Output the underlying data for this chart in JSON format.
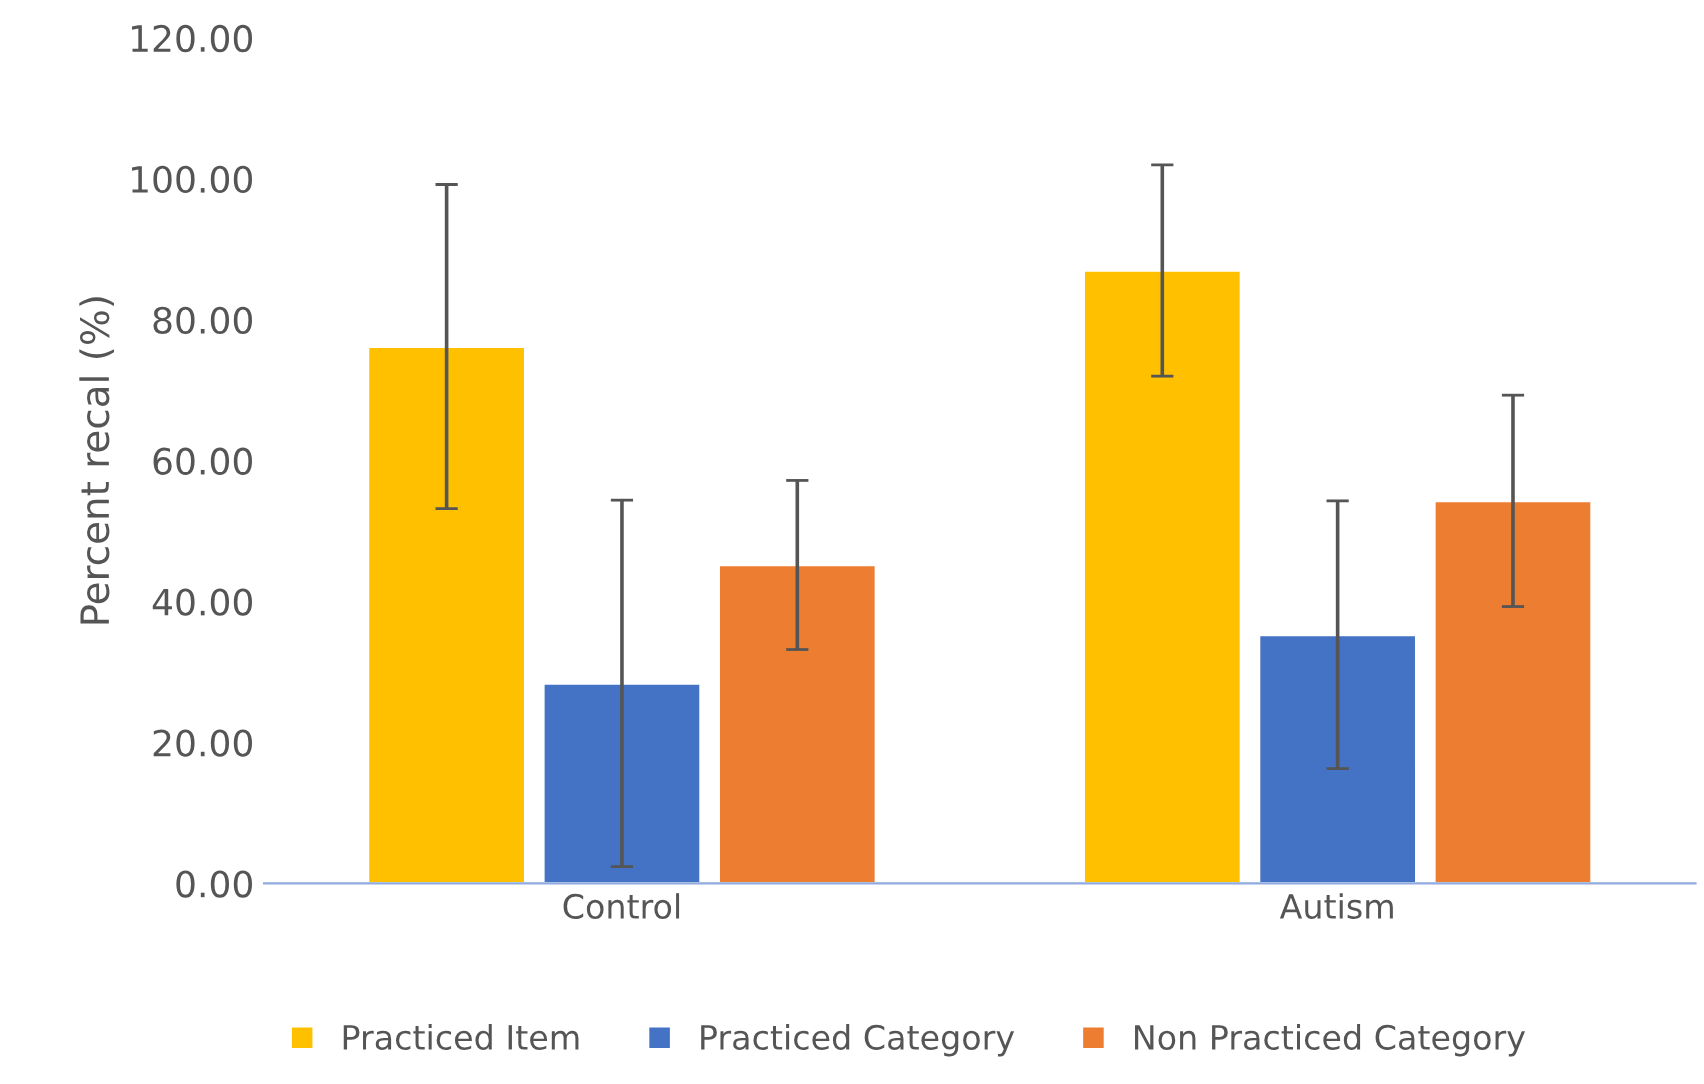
{
  "chart_data": {
    "type": "bar",
    "ylabel": "Percent recal (%)",
    "categories": [
      "Control",
      "Autism"
    ],
    "series": [
      {
        "name": "Practiced Item",
        "color": "#ffc000",
        "values": [
          76.2,
          87
        ],
        "errors": [
          23,
          15
        ]
      },
      {
        "name": "Practiced Category",
        "color": "#4472c4",
        "values": [
          28.4,
          35.3
        ],
        "errors": [
          26,
          19
        ]
      },
      {
        "name": "Non Practiced Category",
        "color": "#ed7d31",
        "values": [
          45.2,
          54.3
        ],
        "errors": [
          12,
          15
        ]
      }
    ],
    "ylim": [
      0,
      120
    ],
    "yticks": [
      {
        "value": 0,
        "label": "0.00"
      },
      {
        "value": 20,
        "label": "20.00"
      },
      {
        "value": 40,
        "label": "40.00"
      },
      {
        "value": 60,
        "label": "60.00"
      },
      {
        "value": 80,
        "label": "80.00"
      },
      {
        "value": 100,
        "label": "100.00"
      },
      {
        "value": 120,
        "label": "120.00"
      }
    ],
    "grid": false,
    "legend": "bottom"
  }
}
